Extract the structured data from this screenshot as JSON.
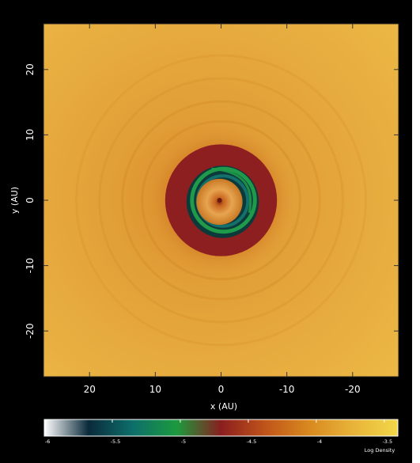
{
  "chart_data": {
    "type": "heatmap",
    "title": "",
    "xlabel": "x (AU)",
    "ylabel": "y (AU)",
    "xlim": [
      27,
      -27
    ],
    "ylim": [
      -27,
      27
    ],
    "x_ticks": [
      {
        "value": 20,
        "label": "20"
      },
      {
        "value": 10,
        "label": "10"
      },
      {
        "value": 0,
        "label": "0"
      },
      {
        "value": -10,
        "label": "-10"
      },
      {
        "value": -20,
        "label": "-20"
      }
    ],
    "y_ticks": [
      {
        "value": 20,
        "label": "20"
      },
      {
        "value": 10,
        "label": "10"
      },
      {
        "value": 0,
        "label": "0"
      },
      {
        "value": -10,
        "label": "-10"
      },
      {
        "value": -20,
        "label": "-20"
      }
    ],
    "field": {
      "description_units": "log density",
      "background_level": -3.7,
      "rings": [
        {
          "inner_radius": 5.5,
          "outer_radius": 8.5,
          "level": -4.5
        },
        {
          "inner_radius": 3.5,
          "outer_radius": 6.0,
          "level": -5.4
        }
      ],
      "center_level": -4.1
    },
    "colorbar": {
      "label": "Log Density",
      "min": -6,
      "max": -3.4,
      "ticks": [
        {
          "value": -6,
          "label": "-6"
        },
        {
          "value": -5.5,
          "label": "-5.5"
        },
        {
          "value": -5,
          "label": "-5"
        },
        {
          "value": -4.5,
          "label": "-4.5"
        },
        {
          "value": -4,
          "label": "-4"
        },
        {
          "value": -3.5,
          "label": "-3.5"
        }
      ],
      "colors": [
        "#ffffff",
        "#0a2a3a",
        "#0d6f6a",
        "#1c9a3e",
        "#8a1e1e",
        "#c0541a",
        "#d98a1f",
        "#e8b43a",
        "#f2d848"
      ]
    },
    "colors": {
      "background": "#e09a36",
      "outer_glow": "#d0801c",
      "red_ring": "#8d1f20",
      "dark_ring": "#0c3a3a",
      "green_ring": "#1f9a4a",
      "teal": "#13706a",
      "core_light": "#e8a85a",
      "core_dark": "#b2501e"
    }
  }
}
